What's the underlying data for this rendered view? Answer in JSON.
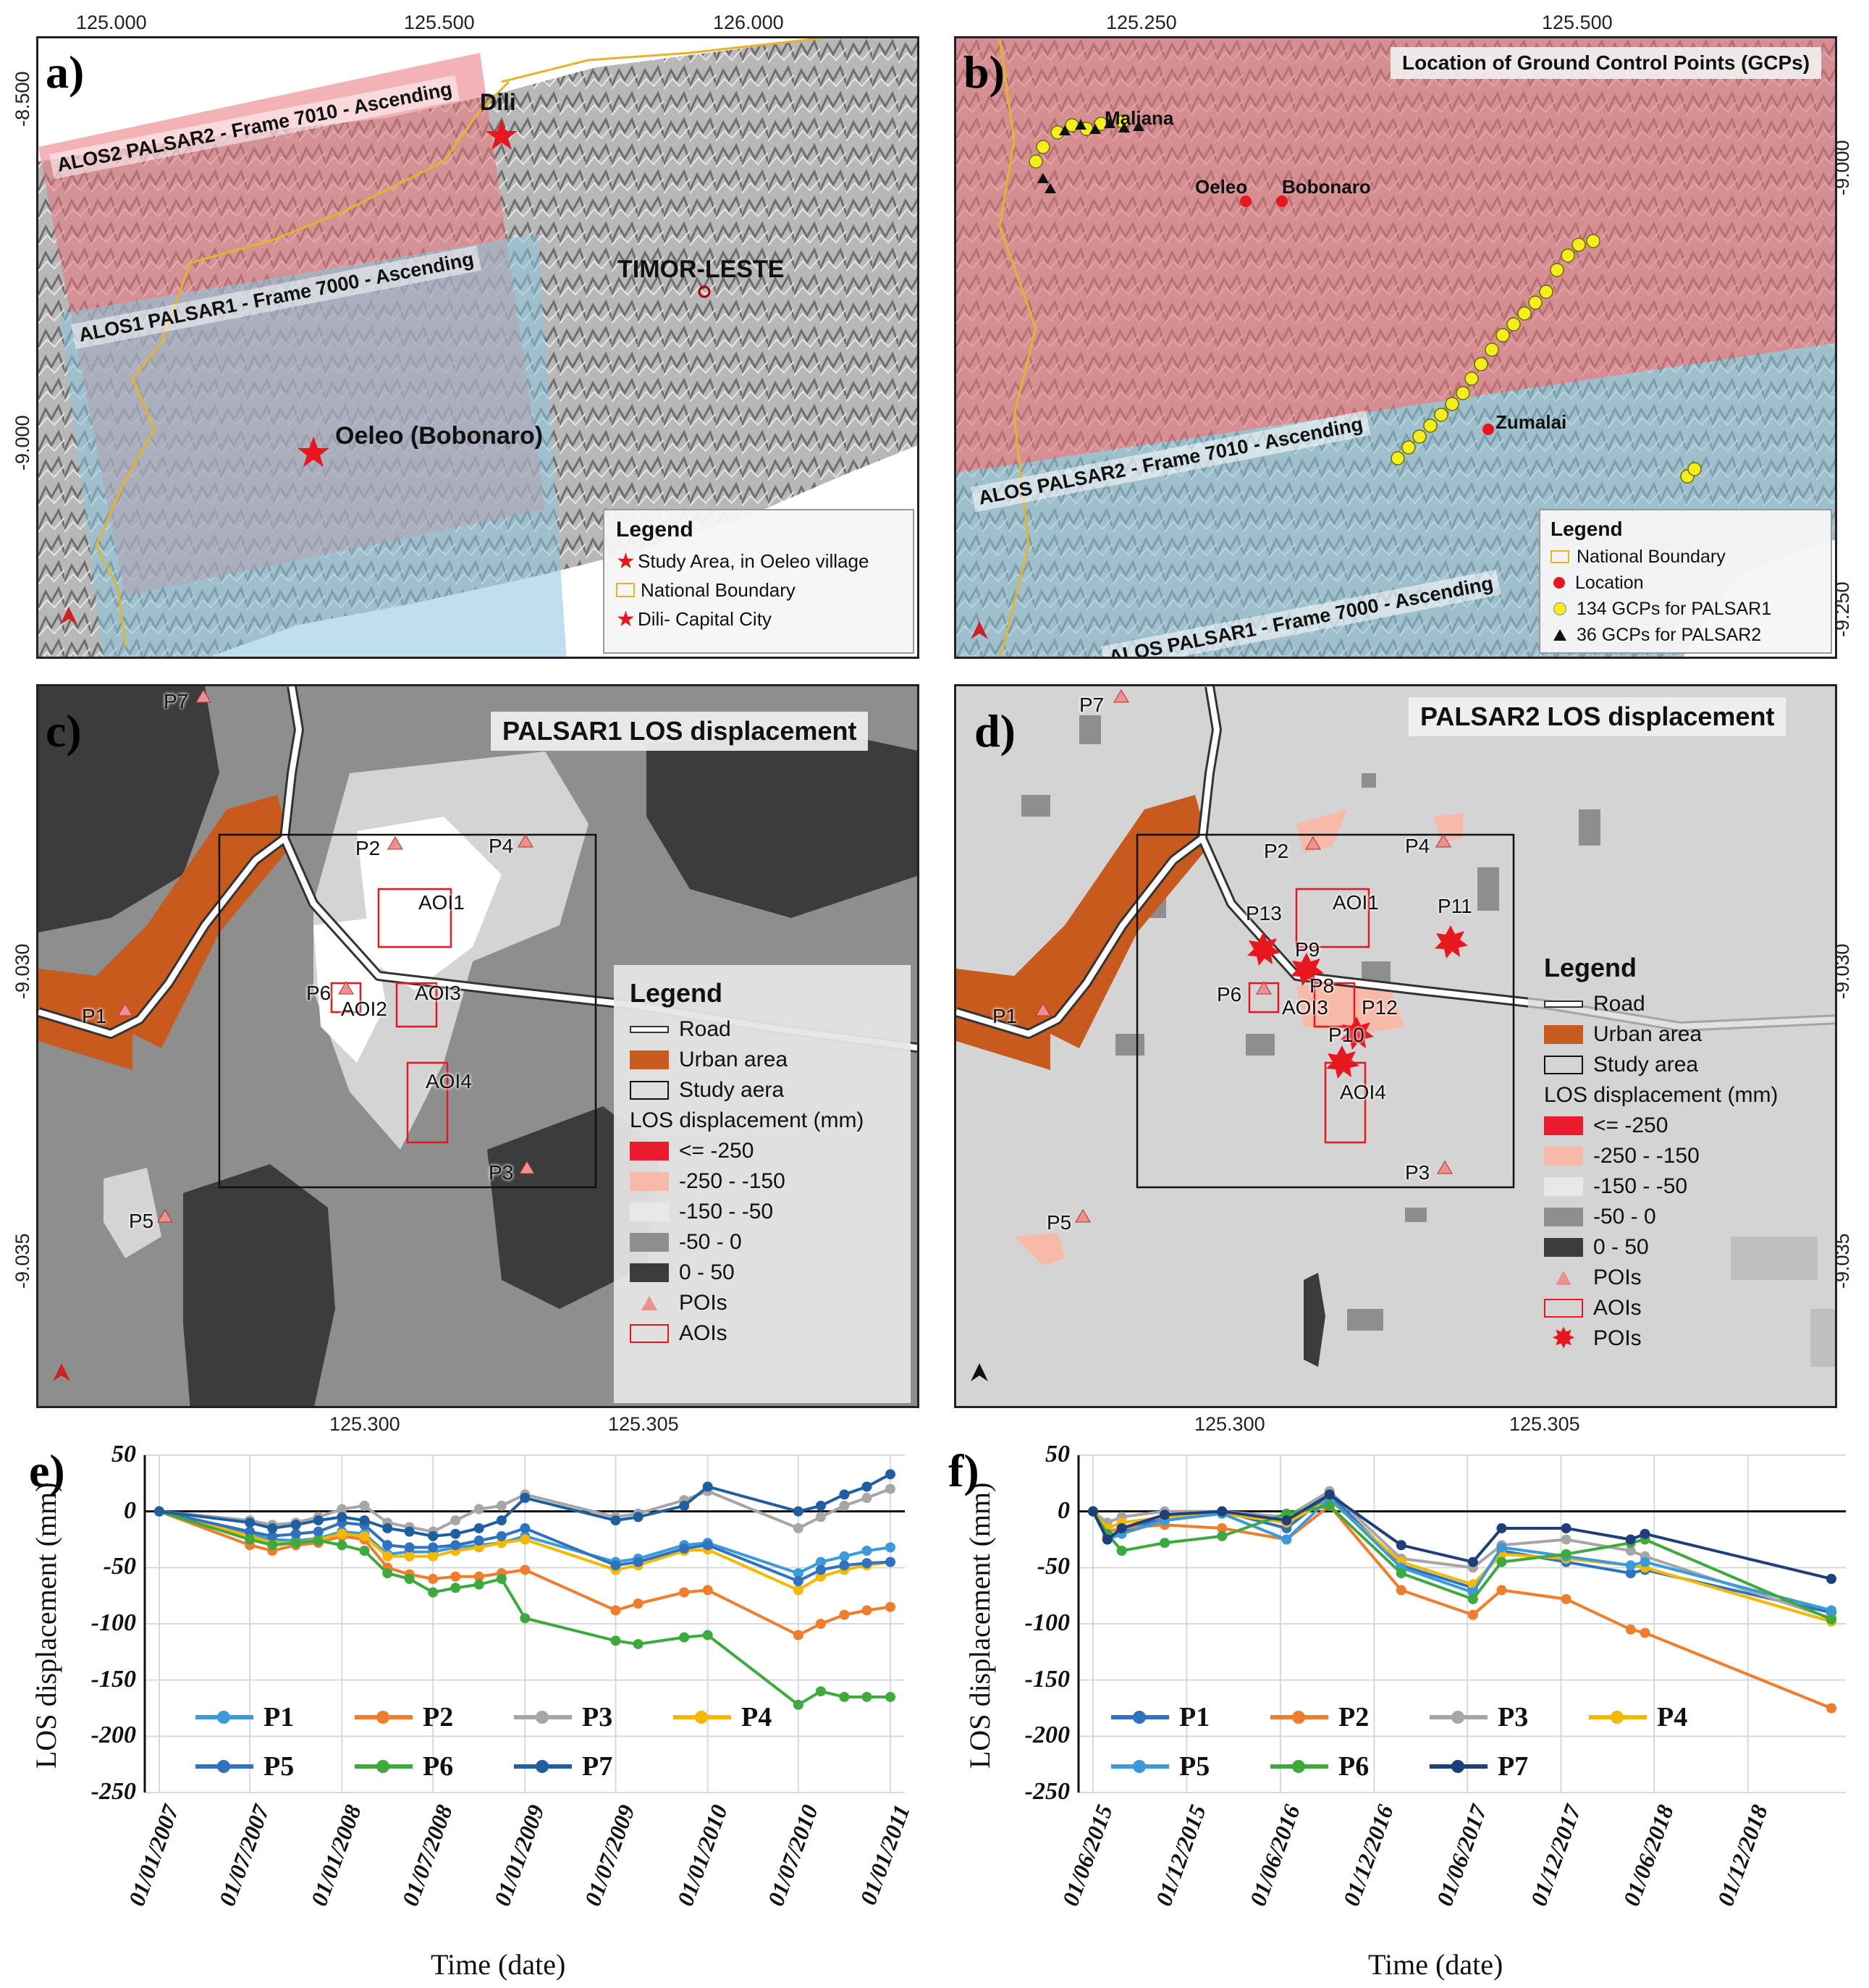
{
  "panels": {
    "a": {
      "label": "a)",
      "ticks_top": [
        "125.000",
        "125.500",
        "126.000"
      ],
      "ticks_left": [
        "-8.500",
        "-9.000"
      ],
      "frames": [
        "ALOS2 PALSAR2 - Frame 7010 - Ascending",
        "ALOS1 PALSAR1 - Frame 7000 - Ascending"
      ],
      "places": {
        "dili": "Dili",
        "country": "TIMOR-LESTE",
        "oeleo": "Oeleo (Bobonaro)"
      },
      "legend": {
        "title": "Legend",
        "items": [
          "Study Area, in Oeleo village",
          "National Boundary",
          "Dili- Capital City"
        ]
      },
      "colors": {
        "palsar2": "#e8737a",
        "palsar1": "#8ac4dc",
        "boundary": "#e6b429",
        "star": "#e8161d"
      }
    },
    "b": {
      "label": "b)",
      "ticks_top": [
        "125.250",
        "125.500"
      ],
      "ticks_right": [
        "-9.000",
        "-9.250"
      ],
      "title": "Location of Ground Control Points (GCPs)",
      "frames": [
        "ALOS PALSAR2 - Frame 7010 - Ascending",
        "ALOS PALSAR1 - Frame 7000 - Ascending"
      ],
      "places": {
        "maliana": "Maliana",
        "oeleo": "Oeleo",
        "bobonaro": "Bobonaro",
        "zumalai": "Zumalai"
      },
      "legend": {
        "title": "Legend",
        "items": [
          "National Boundary",
          "Location",
          "134 GCPs for PALSAR1",
          "36 GCPs for PALSAR2"
        ]
      }
    },
    "c": {
      "label": "c)",
      "title": "PALSAR1 LOS displacement",
      "ticks_bottom": [
        "125.300",
        "125.305"
      ],
      "ticks_left": [
        "-9.030",
        "-9.035"
      ],
      "pois": [
        "P1",
        "P2",
        "P3",
        "P4",
        "P5",
        "P6",
        "P7"
      ],
      "aois": [
        "AOI1",
        "AOI2",
        "AOI3",
        "AOI4"
      ],
      "legend": {
        "title": "Legend",
        "road": "Road",
        "urban": "Urban area",
        "study": "Study aera",
        "los_title": "LOS displacement (mm)",
        "classes": [
          "<= -250",
          "-250 - -150",
          "-150 - -50",
          "-50 - 0",
          "0 - 50"
        ],
        "pois": "POIs",
        "aois": "AOIs"
      }
    },
    "d": {
      "label": "d)",
      "title": "PALSAR2 LOS displacement",
      "ticks_bottom": [
        "125.300",
        "125.305"
      ],
      "ticks_right": [
        "-9.030",
        "-9.035"
      ],
      "pois": [
        "P1",
        "P2",
        "P3",
        "P4",
        "P5",
        "P6",
        "P7"
      ],
      "stars": [
        "P8",
        "P9",
        "P10",
        "P11",
        "P12",
        "P13"
      ],
      "aois": [
        "AOI1",
        "AOI3",
        "AOI4"
      ],
      "legend": {
        "title": "Legend",
        "road": "Road",
        "urban": "Urban area",
        "study": "Study area",
        "los_title": "LOS displacement (mm)",
        "classes": [
          "<= -250",
          "-250 - -150",
          "-150 - -50",
          "-50 - 0",
          "0 - 50"
        ],
        "pois": "POIs",
        "aois": "AOIs",
        "pois2": "POIs"
      }
    },
    "e": {
      "label": "e)"
    },
    "f": {
      "label": "f)"
    }
  },
  "los_colors": [
    "#ea1b2d",
    "#f7b9a8",
    "#d4d4d4",
    "#8e8e8e",
    "#3c3c3c"
  ],
  "urban_color": "#c85a1e",
  "chart_data": [
    {
      "type": "line",
      "ylabel": "LOS displacement (mm)",
      "xlabel": "Time (date)",
      "ylim": [
        -250,
        50
      ],
      "yticks": [
        50,
        0,
        -50,
        -100,
        -150,
        -200,
        -250
      ],
      "xticks": [
        "01/01/2007",
        "01/07/2007",
        "01/01/2008",
        "01/07/2008",
        "01/01/2009",
        "01/07/2009",
        "01/01/2010",
        "01/07/2010",
        "01/01/2011"
      ],
      "x": [
        "2007-01-01",
        "2007-07-01",
        "2007-08-15",
        "2007-10-01",
        "2007-11-15",
        "2008-01-01",
        "2008-02-15",
        "2008-04-01",
        "2008-05-15",
        "2008-07-01",
        "2008-08-15",
        "2008-10-01",
        "2008-11-15",
        "2009-01-01",
        "2009-07-01",
        "2009-08-15",
        "2009-11-15",
        "2010-01-01",
        "2010-07-01",
        "2010-08-15",
        "2010-10-01",
        "2010-11-15",
        "2011-01-01"
      ],
      "series": [
        {
          "name": "P1",
          "color": "#3b9ad9",
          "values": [
            0,
            -20,
            -25,
            -26,
            -24,
            -18,
            -20,
            -38,
            -36,
            -36,
            -32,
            -30,
            -28,
            -22,
            -45,
            -42,
            -30,
            -28,
            -55,
            -45,
            -40,
            -35,
            -32
          ]
        },
        {
          "name": "P2",
          "color": "#f07d2c",
          "values": [
            0,
            -30,
            -35,
            -30,
            -28,
            -22,
            -25,
            -50,
            -56,
            -60,
            -58,
            -58,
            -55,
            -52,
            -88,
            -82,
            -72,
            -70,
            -110,
            -100,
            -92,
            -88,
            -85
          ]
        },
        {
          "name": "P3",
          "color": "#a6a6a6",
          "values": [
            0,
            -8,
            -12,
            -10,
            -5,
            2,
            5,
            -10,
            -14,
            -18,
            -8,
            2,
            5,
            15,
            -5,
            -2,
            10,
            18,
            -15,
            -5,
            5,
            12,
            20
          ]
        },
        {
          "name": "P4",
          "color": "#f5b800",
          "values": [
            0,
            -22,
            -28,
            -28,
            -25,
            -20,
            -22,
            -40,
            -40,
            -40,
            -35,
            -32,
            -28,
            -25,
            -52,
            -48,
            -35,
            -34,
            -70,
            -58,
            -52,
            -48,
            -45
          ]
        },
        {
          "name": "P5",
          "color": "#2f72c0",
          "values": [
            0,
            -18,
            -22,
            -20,
            -18,
            -10,
            -12,
            -30,
            -32,
            -32,
            -30,
            -26,
            -22,
            -15,
            -48,
            -45,
            -33,
            -30,
            -62,
            -52,
            -48,
            -46,
            -45
          ]
        },
        {
          "name": "P6",
          "color": "#3daa3d",
          "values": [
            0,
            -25,
            -30,
            -28,
            -26,
            -30,
            -35,
            -55,
            -60,
            -72,
            -68,
            -65,
            -60,
            -95,
            -115,
            -118,
            -112,
            -110,
            -172,
            -160,
            -165,
            -165,
            -165
          ]
        },
        {
          "name": "P7",
          "color": "#1f5fa0",
          "values": [
            0,
            -10,
            -15,
            -12,
            -8,
            -5,
            -8,
            -15,
            -18,
            -22,
            -20,
            -15,
            -8,
            12,
            -8,
            -5,
            5,
            22,
            0,
            5,
            15,
            22,
            33
          ]
        }
      ]
    },
    {
      "type": "line",
      "ylabel": "LOS displacement (mm)",
      "xlabel": "Time (date)",
      "ylim": [
        -250,
        50
      ],
      "yticks": [
        50,
        0,
        -50,
        -100,
        -150,
        -200,
        -250
      ],
      "xticks": [
        "01/06/2015",
        "01/12/2015",
        "01/06/2016",
        "01/12/2016",
        "01/06/2017",
        "01/12/2017",
        "01/06/2018",
        "01/12/2018"
      ],
      "x": [
        "2015-06-01",
        "2015-06-29",
        "2015-07-27",
        "2015-10-19",
        "2016-02-08",
        "2016-06-13",
        "2016-09-05",
        "2017-01-23",
        "2017-06-12",
        "2017-08-07",
        "2017-12-11",
        "2018-04-16",
        "2018-05-14",
        "2019-05-13"
      ],
      "series": [
        {
          "name": "P1",
          "color": "#2f72c0",
          "values": [
            0,
            -22,
            -18,
            -5,
            0,
            -15,
            15,
            -48,
            -68,
            -35,
            -45,
            -55,
            -52,
            -90
          ]
        },
        {
          "name": "P2",
          "color": "#f07d2c",
          "values": [
            0,
            -18,
            -15,
            -12,
            -15,
            -25,
            5,
            -70,
            -92,
            -70,
            -78,
            -105,
            -108,
            -175
          ]
        },
        {
          "name": "P3",
          "color": "#a6a6a6",
          "values": [
            0,
            -10,
            -5,
            0,
            0,
            -5,
            18,
            -42,
            -50,
            -30,
            -25,
            -35,
            -40,
            -95
          ]
        },
        {
          "name": "P4",
          "color": "#f5b800",
          "values": [
            0,
            -15,
            -10,
            -5,
            -2,
            -10,
            10,
            -45,
            -65,
            -38,
            -42,
            -48,
            -50,
            -98
          ]
        },
        {
          "name": "P5",
          "color": "#3b9ad9",
          "values": [
            0,
            -25,
            -20,
            -8,
            -2,
            -25,
            12,
            -50,
            -72,
            -32,
            -40,
            -48,
            -45,
            -88
          ]
        },
        {
          "name": "P6",
          "color": "#3daa3d",
          "values": [
            0,
            -20,
            -35,
            -28,
            -22,
            -2,
            5,
            -55,
            -78,
            -45,
            -38,
            -28,
            -25,
            -96
          ]
        },
        {
          "name": "P7",
          "color": "#1f3f7a",
          "values": [
            0,
            -25,
            -15,
            -3,
            0,
            -8,
            15,
            -30,
            -45,
            -15,
            -15,
            -25,
            -20,
            -60
          ]
        }
      ]
    }
  ]
}
